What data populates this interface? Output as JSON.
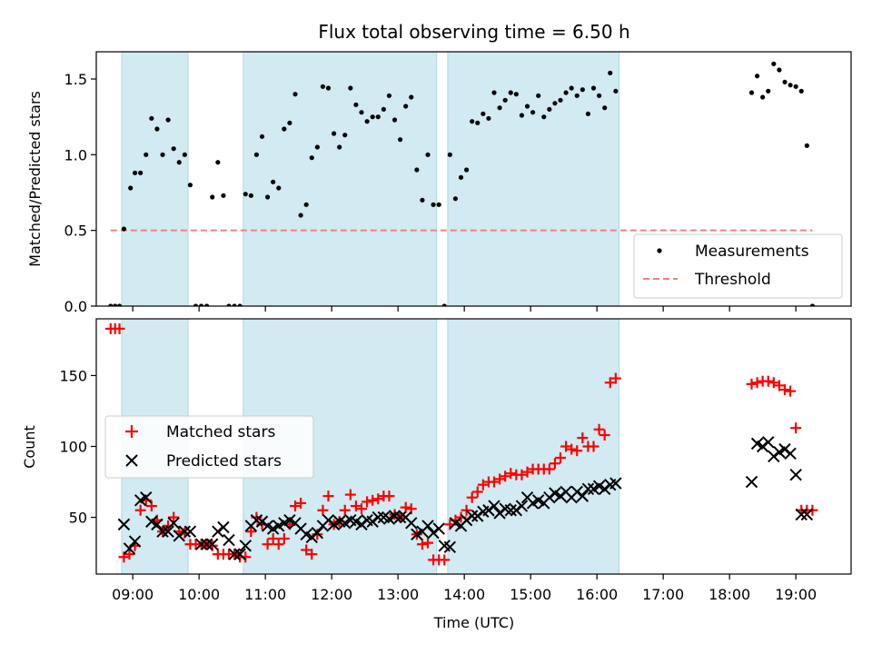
{
  "title": "Flux total observing time = 6.50 h",
  "colors": {
    "band": "#add8e6",
    "measurements": "#000000",
    "threshold": "#f08080",
    "matched": "#ff0000",
    "predicted": "#000000"
  },
  "chart_data": [
    {
      "type": "scatter",
      "panel": "top",
      "ylabel": "Matched/Predicted stars",
      "xlabel": "",
      "xlim": [
        "08:27",
        "19:50"
      ],
      "ylim": [
        0.0,
        1.68
      ],
      "yticks": [
        "0.0",
        "0.5",
        "1.0",
        "1.5"
      ],
      "legend": {
        "placement": "lower-right",
        "entries": [
          "Measurements",
          "Threshold"
        ]
      },
      "bands": [
        [
          "08:50",
          "09:50"
        ],
        [
          "10:40",
          "13:35"
        ],
        [
          "13:45",
          "16:20"
        ]
      ],
      "threshold": {
        "name": "Threshold",
        "y": 0.5,
        "x_range": [
          "08:40",
          "19:15"
        ]
      },
      "series": [
        {
          "name": "Measurements",
          "x": [
            "08:40",
            "08:44",
            "08:48",
            "08:52",
            "08:58",
            "09:02",
            "09:07",
            "09:12",
            "09:17",
            "09:22",
            "09:27",
            "09:32",
            "09:37",
            "09:42",
            "09:47",
            "09:52",
            "09:57",
            "10:02",
            "10:07",
            "10:12",
            "10:17",
            "10:22",
            "10:27",
            "10:32",
            "10:37",
            "10:42",
            "10:47",
            "10:52",
            "10:57",
            "11:02",
            "11:07",
            "11:12",
            "11:17",
            "11:22",
            "11:27",
            "11:32",
            "11:37",
            "11:42",
            "11:47",
            "11:52",
            "11:57",
            "12:02",
            "12:07",
            "12:12",
            "12:17",
            "12:22",
            "12:27",
            "12:32",
            "12:37",
            "12:42",
            "12:47",
            "12:52",
            "12:57",
            "13:02",
            "13:07",
            "13:12",
            "13:17",
            "13:22",
            "13:27",
            "13:32",
            "13:37",
            "13:42",
            "13:47",
            "13:52",
            "13:57",
            "14:02",
            "14:07",
            "14:12",
            "14:17",
            "14:22",
            "14:27",
            "14:32",
            "14:37",
            "14:42",
            "14:47",
            "14:52",
            "14:57",
            "15:02",
            "15:07",
            "15:12",
            "15:17",
            "15:22",
            "15:27",
            "15:32",
            "15:37",
            "15:42",
            "15:47",
            "15:52",
            "15:57",
            "16:02",
            "16:07",
            "16:12",
            "16:17",
            "18:20",
            "18:25",
            "18:30",
            "18:35",
            "18:40",
            "18:45",
            "18:50",
            "18:55",
            "19:00",
            "19:05",
            "19:10",
            "19:15"
          ],
          "y": [
            0.0,
            0.0,
            0.0,
            0.51,
            0.78,
            0.88,
            0.88,
            1.0,
            1.24,
            1.17,
            1.0,
            1.23,
            1.04,
            0.95,
            1.0,
            0.8,
            0.0,
            0.0,
            0.0,
            0.72,
            0.95,
            0.73,
            0.0,
            0.0,
            0.0,
            0.74,
            0.73,
            1.0,
            1.12,
            0.72,
            0.82,
            0.78,
            1.17,
            1.21,
            1.4,
            0.6,
            0.67,
            0.98,
            1.05,
            1.45,
            1.44,
            1.14,
            1.05,
            1.13,
            1.44,
            1.33,
            1.28,
            1.22,
            1.25,
            1.25,
            1.3,
            1.39,
            1.23,
            1.1,
            1.32,
            1.38,
            0.9,
            0.7,
            1.0,
            0.67,
            0.67,
            0.0,
            1.0,
            0.71,
            0.85,
            0.9,
            1.22,
            1.21,
            1.27,
            1.24,
            1.41,
            1.31,
            1.36,
            1.41,
            1.4,
            1.26,
            1.32,
            1.28,
            1.39,
            1.25,
            1.3,
            1.34,
            1.36,
            1.41,
            1.44,
            1.39,
            1.43,
            1.27,
            1.44,
            1.39,
            1.31,
            1.54,
            1.42,
            1.41,
            1.52,
            1.38,
            1.42,
            1.6,
            1.56,
            1.48,
            1.46,
            1.45,
            1.42,
            1.06,
            0.0
          ]
        }
      ]
    },
    {
      "type": "scatter",
      "panel": "bottom",
      "xlabel": "Time (UTC)",
      "ylabel": "Count",
      "xlim": [
        "08:27",
        "19:50"
      ],
      "ylim": [
        10,
        190
      ],
      "yticks": [
        "50",
        "100",
        "150"
      ],
      "xticks": [
        "09:00",
        "10:00",
        "11:00",
        "12:00",
        "13:00",
        "14:00",
        "15:00",
        "16:00",
        "17:00",
        "18:00",
        "19:00"
      ],
      "legend": {
        "placement": "center-left",
        "entries": [
          "Matched stars",
          "Predicted stars"
        ]
      },
      "bands": [
        [
          "08:50",
          "09:50"
        ],
        [
          "10:40",
          "13:35"
        ],
        [
          "13:45",
          "16:20"
        ]
      ],
      "series": [
        {
          "name": "Matched stars",
          "marker": "plus",
          "x": [
            "08:40",
            "08:44",
            "08:48",
            "08:52",
            "08:57",
            "09:02",
            "09:07",
            "09:12",
            "09:17",
            "09:22",
            "09:27",
            "09:32",
            "09:37",
            "09:42",
            "09:47",
            "09:52",
            "09:57",
            "10:02",
            "10:07",
            "10:12",
            "10:17",
            "10:22",
            "10:27",
            "10:32",
            "10:37",
            "10:42",
            "10:47",
            "10:52",
            "10:57",
            "11:02",
            "11:07",
            "11:12",
            "11:17",
            "11:22",
            "11:27",
            "11:32",
            "11:37",
            "11:42",
            "11:47",
            "11:52",
            "11:57",
            "12:02",
            "12:07",
            "12:12",
            "12:17",
            "12:22",
            "12:27",
            "12:32",
            "12:37",
            "12:42",
            "12:47",
            "12:52",
            "12:57",
            "13:02",
            "13:07",
            "13:12",
            "13:17",
            "13:22",
            "13:27",
            "13:32",
            "13:37",
            "13:42",
            "13:47",
            "13:52",
            "13:57",
            "14:02",
            "14:07",
            "14:12",
            "14:17",
            "14:22",
            "14:27",
            "14:32",
            "14:37",
            "14:42",
            "14:47",
            "14:52",
            "14:57",
            "15:02",
            "15:07",
            "15:12",
            "15:17",
            "15:22",
            "15:27",
            "15:32",
            "15:37",
            "15:42",
            "15:47",
            "15:52",
            "15:57",
            "16:02",
            "16:07",
            "16:12",
            "16:17",
            "18:20",
            "18:25",
            "18:30",
            "18:35",
            "18:40",
            "18:45",
            "18:50",
            "18:55",
            "19:00",
            "19:05",
            "19:10",
            "19:15"
          ],
          "y": [
            183,
            183,
            183,
            22,
            24,
            30,
            55,
            62,
            58,
            48,
            40,
            44,
            50,
            40,
            39,
            31,
            31,
            31,
            31,
            30,
            24,
            24,
            24,
            24,
            22,
            22,
            40,
            50,
            45,
            31,
            35,
            31,
            35,
            45,
            58,
            60,
            27,
            24,
            38,
            55,
            65,
            45,
            47,
            55,
            66,
            58,
            56,
            61,
            62,
            63,
            65,
            65,
            52,
            50,
            57,
            56,
            38,
            31,
            32,
            20,
            20,
            20,
            45,
            48,
            50,
            55,
            64,
            68,
            73,
            75,
            75,
            77,
            79,
            81,
            80,
            80,
            82,
            84,
            84,
            84,
            84,
            88,
            92,
            100,
            98,
            97,
            106,
            100,
            100,
            112,
            108,
            145,
            148,
            144,
            145,
            146,
            146,
            145,
            143,
            140,
            139,
            113,
            55,
            55,
            55
          ]
        },
        {
          "name": "Predicted stars",
          "marker": "x",
          "x": [
            "08:52",
            "08:57",
            "09:02",
            "09:07",
            "09:12",
            "09:17",
            "09:22",
            "09:27",
            "09:32",
            "09:37",
            "09:42",
            "09:47",
            "09:52",
            "10:02",
            "10:07",
            "10:12",
            "10:17",
            "10:22",
            "10:27",
            "10:32",
            "10:37",
            "10:42",
            "10:47",
            "10:52",
            "10:57",
            "11:02",
            "11:07",
            "11:12",
            "11:17",
            "11:22",
            "11:27",
            "11:32",
            "11:37",
            "11:42",
            "11:47",
            "11:52",
            "11:57",
            "12:02",
            "12:07",
            "12:12",
            "12:17",
            "12:22",
            "12:27",
            "12:32",
            "12:37",
            "12:42",
            "12:47",
            "12:52",
            "12:57",
            "13:02",
            "13:07",
            "13:12",
            "13:17",
            "13:22",
            "13:27",
            "13:32",
            "13:37",
            "13:42",
            "13:47",
            "13:52",
            "13:57",
            "14:02",
            "14:07",
            "14:12",
            "14:17",
            "14:22",
            "14:27",
            "14:32",
            "14:37",
            "14:42",
            "14:47",
            "14:52",
            "14:57",
            "15:02",
            "15:07",
            "15:12",
            "15:17",
            "15:22",
            "15:27",
            "15:32",
            "15:37",
            "15:42",
            "15:47",
            "15:52",
            "15:57",
            "16:02",
            "16:07",
            "16:12",
            "16:17",
            "18:20",
            "18:25",
            "18:30",
            "18:35",
            "18:40",
            "18:45",
            "18:50",
            "18:55",
            "19:00",
            "19:05",
            "19:10"
          ],
          "y": [
            45,
            28,
            33,
            62,
            64,
            47,
            45,
            40,
            40,
            46,
            37,
            40,
            40,
            31,
            31,
            31,
            40,
            43,
            34,
            24,
            24,
            30,
            44,
            48,
            47,
            44,
            42,
            44,
            46,
            48,
            46,
            42,
            38,
            36,
            39,
            44,
            48,
            45,
            47,
            46,
            48,
            47,
            45,
            48,
            47,
            50,
            50,
            49,
            51,
            50,
            50,
            46,
            38,
            40,
            44,
            39,
            42,
            30,
            29,
            46,
            44,
            48,
            51,
            51,
            54,
            55,
            58,
            53,
            56,
            55,
            55,
            58,
            64,
            60,
            62,
            60,
            64,
            67,
            65,
            68,
            64,
            68,
            65,
            70,
            70,
            72,
            70,
            73,
            74,
            75,
            102,
            100,
            103,
            93,
            96,
            98,
            95,
            80,
            52,
            52
          ]
        }
      ]
    }
  ]
}
